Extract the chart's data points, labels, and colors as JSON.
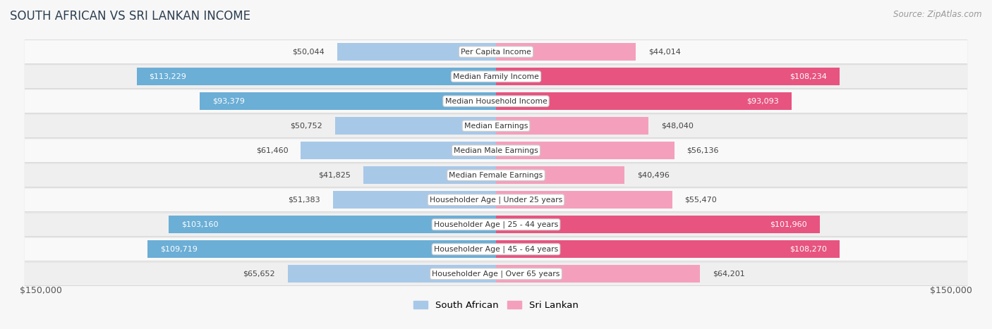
{
  "title": "SOUTH AFRICAN VS SRI LANKAN INCOME",
  "source": "Source: ZipAtlas.com",
  "categories": [
    "Per Capita Income",
    "Median Family Income",
    "Median Household Income",
    "Median Earnings",
    "Median Male Earnings",
    "Median Female Earnings",
    "Householder Age | Under 25 years",
    "Householder Age | 25 - 44 years",
    "Householder Age | 45 - 64 years",
    "Householder Age | Over 65 years"
  ],
  "south_african": [
    50044,
    113229,
    93379,
    50752,
    61460,
    41825,
    51383,
    103160,
    109719,
    65652
  ],
  "sri_lankan": [
    44014,
    108234,
    93093,
    48040,
    56136,
    40496,
    55470,
    101960,
    108270,
    64201
  ],
  "south_african_labels": [
    "$50,044",
    "$113,229",
    "$93,379",
    "$50,752",
    "$61,460",
    "$41,825",
    "$51,383",
    "$103,160",
    "$109,719",
    "$65,652"
  ],
  "sri_lankan_labels": [
    "$44,014",
    "$108,234",
    "$93,093",
    "$48,040",
    "$56,136",
    "$40,496",
    "$55,470",
    "$101,960",
    "$108,270",
    "$64,201"
  ],
  "sa_color_light": "#a8c8e8",
  "sa_color_dark": "#6baed6",
  "sl_color_light": "#f4a0bc",
  "sl_color_dark": "#e75480",
  "max_val": 150000,
  "legend_sa": "South African",
  "legend_sl": "Sri Lankan",
  "title_color": "#2c3e50",
  "source_color": "#999999",
  "bar_height": 0.72,
  "label_threshold": 75000,
  "axis_label_left": "$150,000",
  "axis_label_right": "$150,000",
  "row_colors": [
    "#f9f9f9",
    "#efefef"
  ],
  "row_border": "#dddddd"
}
